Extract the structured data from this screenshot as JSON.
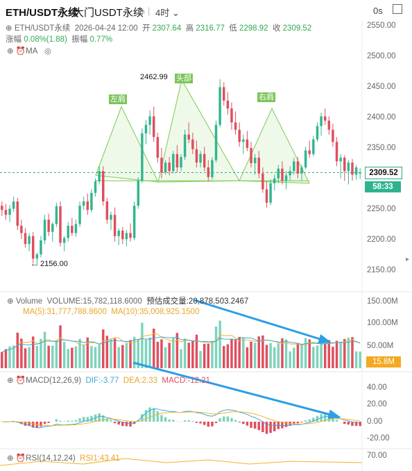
{
  "header": {
    "symbol": "ETH/USDT永续",
    "exchange_name": "大门USDT永续",
    "timeframe": "4时 ⌄",
    "edit_icon": "edit-icon",
    "os_label": "0s"
  },
  "ohlc": {
    "symbol_small": "ETH/USDT永续",
    "date": "2026-04-24 12:00",
    "open_label": "开",
    "open": "2307.64",
    "high_label": "高",
    "high": "2316.77",
    "low_label": "低",
    "low": "2298.92",
    "close_label": "收",
    "close": "2309.52",
    "change_label": "涨幅",
    "change": "0.08%(1.88)",
    "amp_label": "振幅",
    "amp": "0.77%"
  },
  "ma_label": "MA",
  "price_labels": {
    "high_mark": "2462.99",
    "low_mark": "← 2156.00"
  },
  "patterns": {
    "left": "左肩",
    "head": "头部",
    "right": "右肩"
  },
  "price_axis": [
    "2550.00",
    "2500.00",
    "2450.00",
    "2400.00",
    "2350.00",
    "2300.00",
    "2250.00",
    "2200.00",
    "2150.00"
  ],
  "current_price": "2309.52",
  "countdown": "58:33",
  "volume": {
    "title": "Volume",
    "value_text": "VOLUME:15,782,118.6000",
    "est_text": "预估成交量:20,878,503.2467",
    "ma5": "MA(5):31,777,788.8600",
    "ma10": "MA(10):35,008,925.1500",
    "axis": [
      "150.00M",
      "100.00M",
      "50.00M"
    ],
    "tag": "15.8M"
  },
  "macd": {
    "title": "MACD(12,26,9)",
    "dif": "DIF:-3.77",
    "dea": "DEA:2.33",
    "macd": "MACD:-12.21",
    "axis": [
      "40.00",
      "20.00",
      "0.00",
      "-20.00"
    ]
  },
  "rsi": {
    "title": "RSI(14,12,24)",
    "rsi1": "RSI1:43.41",
    "axis": [
      "70.00"
    ]
  },
  "colors": {
    "up": "#33b58f",
    "down": "#e04e5e",
    "pattern": "#8fd16a",
    "arrow": "#2a9ee8",
    "ma5": "#f0b429",
    "ma10": "#3aa7d8"
  },
  "chart_data": {
    "type": "candlestick",
    "ylim": [
      2140,
      2560
    ],
    "head_high": 2462.99,
    "low": 2156.0,
    "last_close": 2309.52,
    "candles": [
      [
        2255,
        2262,
        2238,
        2248
      ],
      [
        2248,
        2258,
        2232,
        2240
      ],
      [
        2240,
        2256,
        2228,
        2250
      ],
      [
        2250,
        2270,
        2245,
        2262
      ],
      [
        2262,
        2268,
        2215,
        2222
      ],
      [
        2222,
        2232,
        2200,
        2210
      ],
      [
        2210,
        2218,
        2186,
        2192
      ],
      [
        2192,
        2210,
        2180,
        2205
      ],
      [
        2205,
        2212,
        2160,
        2168
      ],
      [
        2168,
        2178,
        2156,
        2175
      ],
      [
        2175,
        2205,
        2170,
        2198
      ],
      [
        2198,
        2240,
        2192,
        2232
      ],
      [
        2232,
        2242,
        2205,
        2212
      ],
      [
        2212,
        2228,
        2196,
        2225
      ],
      [
        2225,
        2260,
        2220,
        2254
      ],
      [
        2254,
        2262,
        2188,
        2194
      ],
      [
        2194,
        2205,
        2180,
        2202
      ],
      [
        2202,
        2228,
        2196,
        2222
      ],
      [
        2222,
        2235,
        2205,
        2210
      ],
      [
        2210,
        2232,
        2204,
        2225
      ],
      [
        2225,
        2262,
        2220,
        2255
      ],
      [
        2255,
        2270,
        2248,
        2262
      ],
      [
        2262,
        2275,
        2240,
        2248
      ],
      [
        2248,
        2282,
        2244,
        2276
      ],
      [
        2276,
        2300,
        2270,
        2295
      ],
      [
        2295,
        2320,
        2290,
        2312
      ],
      [
        2312,
        2320,
        2255,
        2262
      ],
      [
        2262,
        2268,
        2225,
        2232
      ],
      [
        2232,
        2245,
        2215,
        2240
      ],
      [
        2240,
        2252,
        2196,
        2205
      ],
      [
        2205,
        2218,
        2190,
        2214
      ],
      [
        2214,
        2220,
        2192,
        2200
      ],
      [
        2200,
        2215,
        2188,
        2210
      ],
      [
        2210,
        2226,
        2196,
        2202
      ],
      [
        2202,
        2262,
        2198,
        2255
      ],
      [
        2255,
        2302,
        2250,
        2296
      ],
      [
        2296,
        2382,
        2292,
        2374
      ],
      [
        2374,
        2396,
        2356,
        2388
      ],
      [
        2388,
        2412,
        2372,
        2402
      ],
      [
        2402,
        2418,
        2360,
        2368
      ],
      [
        2368,
        2375,
        2326,
        2334
      ],
      [
        2334,
        2350,
        2300,
        2310
      ],
      [
        2310,
        2330,
        2306,
        2326
      ],
      [
        2326,
        2335,
        2305,
        2312
      ],
      [
        2312,
        2345,
        2308,
        2340
      ],
      [
        2340,
        2355,
        2310,
        2318
      ],
      [
        2318,
        2340,
        2312,
        2335
      ],
      [
        2335,
        2380,
        2330,
        2372
      ],
      [
        2372,
        2392,
        2358,
        2364
      ],
      [
        2364,
        2375,
        2340,
        2348
      ],
      [
        2348,
        2362,
        2318,
        2326
      ],
      [
        2326,
        2345,
        2318,
        2340
      ],
      [
        2340,
        2352,
        2312,
        2318
      ],
      [
        2318,
        2330,
        2295,
        2302
      ],
      [
        2302,
        2335,
        2298,
        2330
      ],
      [
        2330,
        2395,
        2326,
        2388
      ],
      [
        2388,
        2463,
        2384,
        2450
      ],
      [
        2450,
        2458,
        2420,
        2428
      ],
      [
        2428,
        2442,
        2405,
        2415
      ],
      [
        2415,
        2425,
        2380,
        2392
      ],
      [
        2392,
        2410,
        2372,
        2380
      ],
      [
        2380,
        2392,
        2352,
        2360
      ],
      [
        2360,
        2372,
        2340,
        2364
      ],
      [
        2364,
        2378,
        2345,
        2350
      ],
      [
        2350,
        2360,
        2318,
        2325
      ],
      [
        2325,
        2340,
        2306,
        2334
      ],
      [
        2334,
        2345,
        2300,
        2308
      ],
      [
        2308,
        2318,
        2276,
        2282
      ],
      [
        2282,
        2295,
        2252,
        2260
      ],
      [
        2260,
        2298,
        2256,
        2292
      ],
      [
        2292,
        2306,
        2280,
        2300
      ],
      [
        2300,
        2322,
        2292,
        2316
      ],
      [
        2316,
        2328,
        2290,
        2296
      ],
      [
        2296,
        2312,
        2282,
        2305
      ],
      [
        2305,
        2320,
        2296,
        2312
      ],
      [
        2312,
        2334,
        2306,
        2328
      ],
      [
        2328,
        2335,
        2300,
        2308
      ],
      [
        2308,
        2322,
        2296,
        2318
      ],
      [
        2318,
        2352,
        2315,
        2346
      ],
      [
        2346,
        2362,
        2334,
        2340
      ],
      [
        2340,
        2370,
        2336,
        2364
      ],
      [
        2364,
        2392,
        2360,
        2386
      ],
      [
        2386,
        2408,
        2370,
        2402
      ],
      [
        2402,
        2415,
        2388,
        2395
      ],
      [
        2395,
        2402,
        2372,
        2380
      ],
      [
        2380,
        2390,
        2352,
        2360
      ],
      [
        2360,
        2368,
        2320,
        2328
      ],
      [
        2328,
        2340,
        2300,
        2334
      ],
      [
        2334,
        2338,
        2296,
        2312
      ],
      [
        2312,
        2330,
        2290,
        2326
      ],
      [
        2326,
        2332,
        2296,
        2306
      ],
      [
        2306,
        2322,
        2298,
        2318
      ],
      [
        2308,
        2317,
        2299,
        2310
      ]
    ]
  }
}
